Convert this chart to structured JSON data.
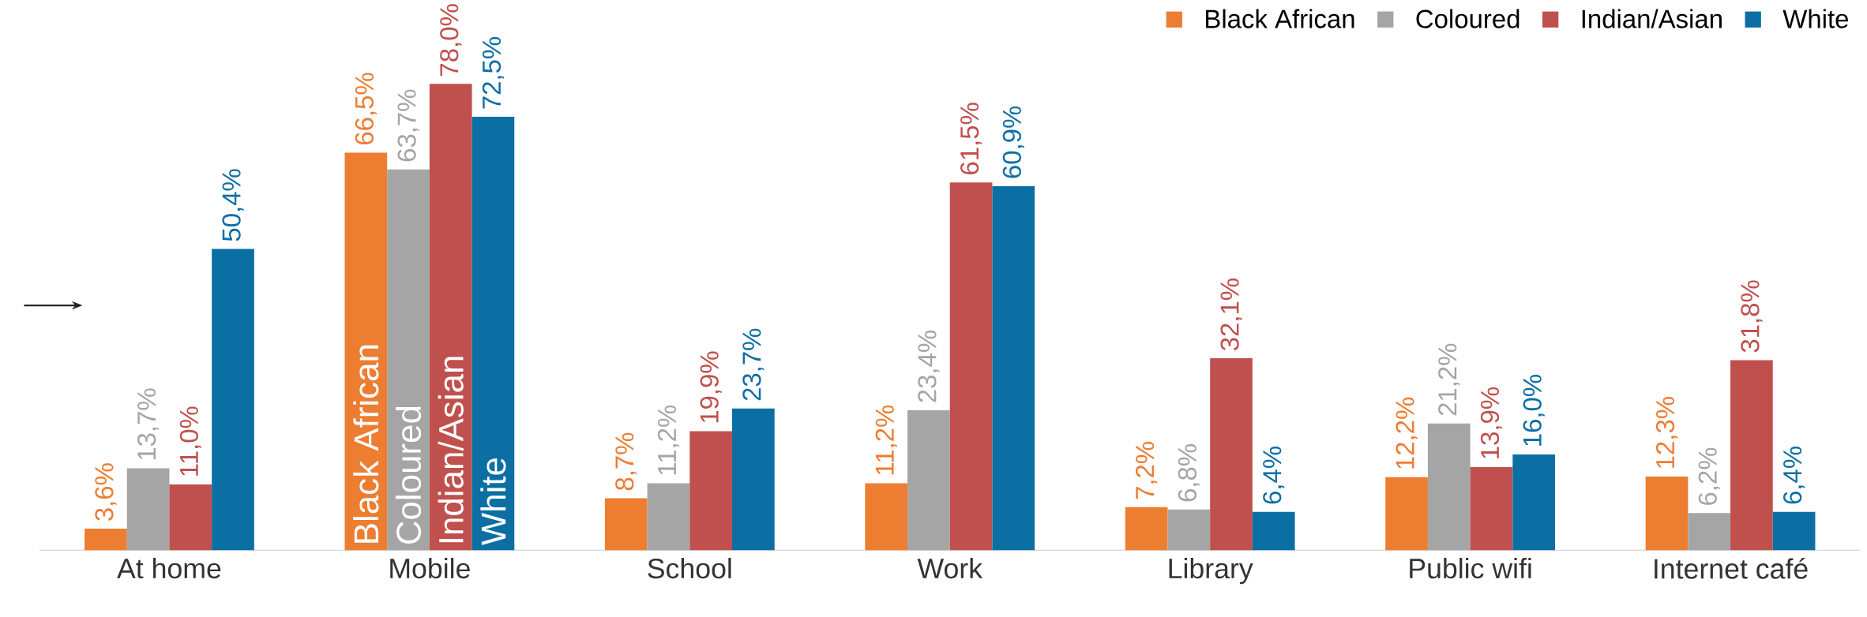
{
  "chart_data": {
    "type": "bar",
    "legend": "top right",
    "categories": [
      "At home",
      "Mobile",
      "School",
      "Work",
      "Library",
      "Public wifi",
      "Internet café"
    ],
    "series": [
      {
        "name": "Black African",
        "color": "#ed7d31",
        "values": [
          3.6,
          66.5,
          8.7,
          11.2,
          7.2,
          12.2,
          12.3
        ],
        "value_labels": [
          "3,6%",
          "66,5%",
          "8,7%",
          "11,2%",
          "7,2%",
          "12,2%",
          "12,3%"
        ]
      },
      {
        "name": "Coloured",
        "color": "#a5a5a5",
        "values": [
          13.7,
          63.7,
          11.2,
          23.4,
          6.8,
          21.2,
          6.2
        ],
        "value_labels": [
          "13,7%",
          "63,7%",
          "11,2%",
          "23,4%",
          "6,8%",
          "21,2%",
          "6,2%"
        ]
      },
      {
        "name": "Indian/Asian",
        "color": "#c0504d",
        "values": [
          11.0,
          78.0,
          19.9,
          61.5,
          32.1,
          13.9,
          31.8
        ],
        "value_labels": [
          "11,0%",
          "78,0%",
          "19,9%",
          "61,5%",
          "32,1%",
          "13,9%",
          "31,8%"
        ]
      },
      {
        "name": "White",
        "color": "#0b6fa4",
        "values": [
          50.4,
          72.5,
          23.7,
          60.9,
          6.4,
          16.0,
          6.4
        ],
        "value_labels": [
          "50,4%",
          "72,5%",
          "23,7%",
          "60,9%",
          "6,4%",
          "16,0%",
          "6,4%"
        ]
      }
    ],
    "annotations": [
      {
        "text": "Black African",
        "x": "Mobile",
        "y": 0
      },
      {
        "text": "Coloured",
        "x": "Mobile",
        "y": 0
      },
      {
        "text": "Indian/Asian",
        "x": "Mobile",
        "y": 0
      },
      {
        "text": "White",
        "x": "Mobile",
        "y": 0
      }
    ]
  }
}
